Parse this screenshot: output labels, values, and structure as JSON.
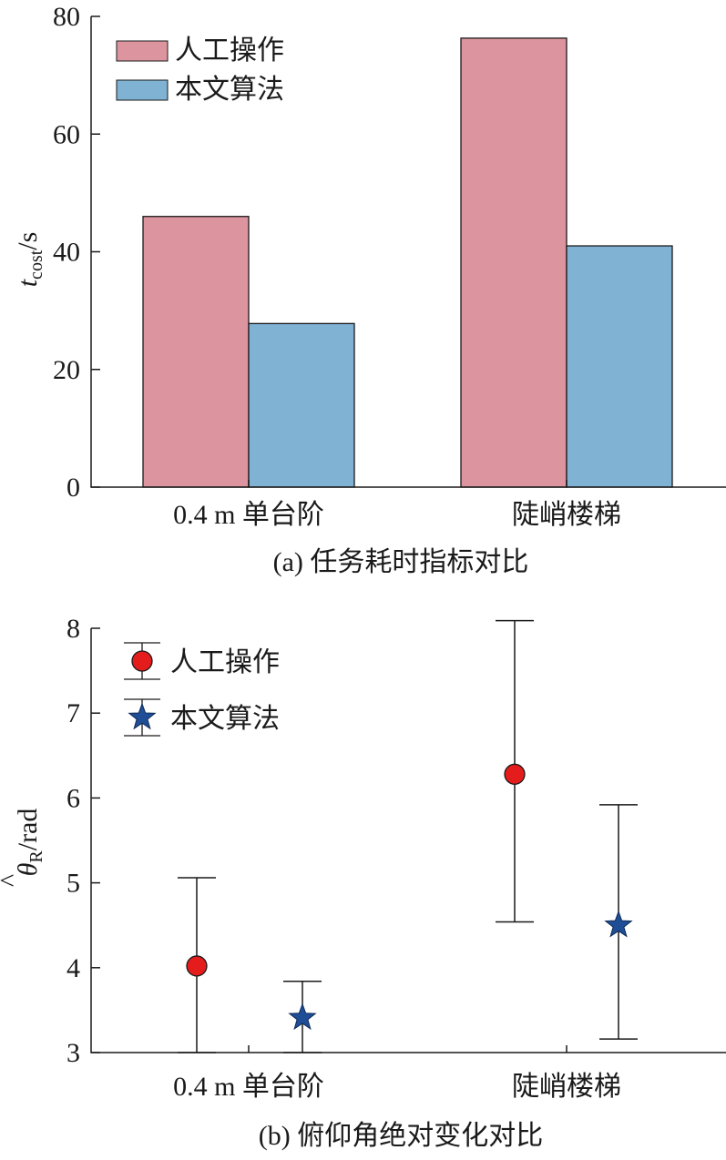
{
  "chart_data": [
    {
      "type": "bar",
      "caption": "(a) 任务耗时指标对比",
      "ylabel": {
        "main": "t",
        "sub": "cost",
        "unit": "/s"
      },
      "categories": [
        "0.4 m 单台阶",
        "陡峭楼梯"
      ],
      "series": [
        {
          "name": "人工操作",
          "values": [
            46,
            76.3
          ],
          "color": "#dc959e"
        },
        {
          "name": "本文算法",
          "values": [
            27.8,
            41
          ],
          "color": "#7fb2d3"
        }
      ],
      "ylim": [
        0,
        80
      ],
      "yticks": [
        0,
        20,
        40,
        60,
        80
      ],
      "legend_position": "top-left",
      "grid": false
    },
    {
      "type": "scatter",
      "subtype": "errorbar",
      "caption": "(b) 俯仰角绝对变化对比",
      "ylabel": {
        "main": "θ",
        "sub": "R",
        "unit": "/rad"
      },
      "categories": [
        "0.4 m 单台阶",
        "陡峭楼梯"
      ],
      "series": [
        {
          "name": "人工操作",
          "marker": "circle",
          "color": "#e41c1c",
          "values": [
            4.02,
            6.28
          ],
          "lower": [
            3.0,
            4.54
          ],
          "upper": [
            5.06,
            8.09
          ]
        },
        {
          "name": "本文算法",
          "marker": "star",
          "color": "#1f4e96",
          "values": [
            3.41,
            4.5
          ],
          "lower": [
            3.0,
            3.16
          ],
          "upper": [
            3.84,
            5.92
          ]
        }
      ],
      "ylim": [
        3,
        8
      ],
      "yticks": [
        3,
        4,
        5,
        6,
        7,
        8
      ],
      "legend_position": "top-left",
      "grid": false
    }
  ]
}
